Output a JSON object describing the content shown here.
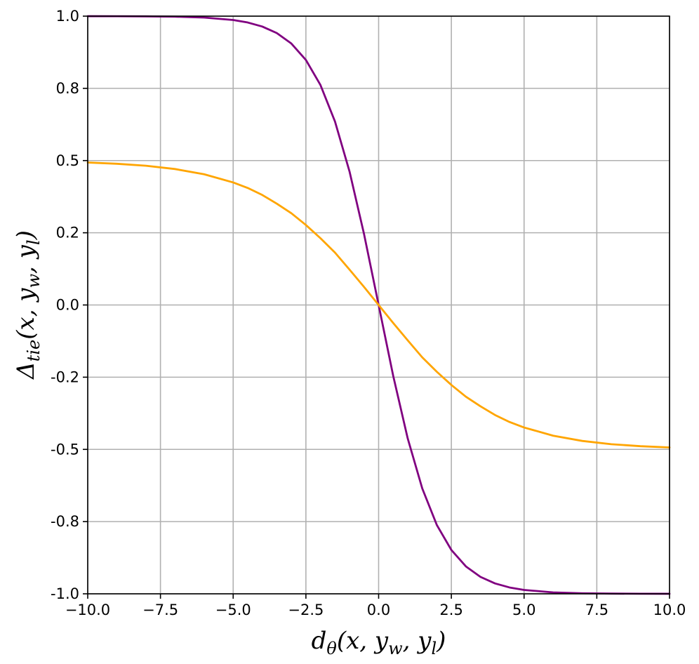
{
  "chart_data": {
    "type": "line",
    "title": "",
    "xlabel": {
      "base": "d",
      "base_sub": "θ",
      "args": [
        "(x, y",
        "w",
        ", y",
        "l",
        ")"
      ]
    },
    "ylabel": {
      "base": "Δ",
      "base_sub": "tie",
      "args": [
        "(x, y",
        "w",
        ", y",
        "l",
        ")"
      ]
    },
    "xlim": [
      -10,
      10
    ],
    "ylim": [
      -1,
      1
    ],
    "x_ticks": [
      -10,
      -7.5,
      -5,
      -2.5,
      0,
      2.5,
      5,
      7.5,
      10
    ],
    "x_tick_labels": [
      "−10.0",
      "−7.5",
      "−5.0",
      "−2.5",
      "0.0",
      "2.5",
      "5.0",
      "7.5",
      "10.0"
    ],
    "y_ticks": [
      1.0,
      0.75,
      0.5,
      0.25,
      0.0,
      -0.25,
      -0.5,
      -0.75,
      -1.0
    ],
    "y_tick_labels": [
      "1.0",
      "0.8",
      "0.5",
      "0.2",
      "0.0",
      "-0.2",
      "-0.5",
      "-0.8",
      "-1.0"
    ],
    "grid": true,
    "legend": "none",
    "series": [
      {
        "color": "#800080",
        "x": [
          -10,
          -9,
          -8,
          -7,
          -6,
          -5,
          -4.5,
          -4,
          -3.5,
          -3,
          -2.5,
          -2,
          -1.5,
          -1,
          -0.5,
          0,
          0.5,
          1,
          1.5,
          2,
          2.5,
          3,
          3.5,
          4,
          4.5,
          5,
          6,
          7,
          8,
          9,
          10
        ],
        "y": [
          0.9999,
          0.9997,
          0.9993,
          0.9982,
          0.9951,
          0.9866,
          0.978,
          0.964,
          0.9414,
          0.9051,
          0.8483,
          0.7616,
          0.6351,
          0.4621,
          0.2449,
          0.0,
          -0.2449,
          -0.4621,
          -0.6351,
          -0.7616,
          -0.8483,
          -0.9051,
          -0.9414,
          -0.964,
          -0.978,
          -0.9866,
          -0.9951,
          -0.9982,
          -0.9993,
          -0.9997,
          -0.9999
        ]
      },
      {
        "color": "#ffa500",
        "x": [
          -10,
          -9,
          -8,
          -7,
          -6,
          -5,
          -4.5,
          -4,
          -3.5,
          -3,
          -2.5,
          -2,
          -1.5,
          -1,
          -0.5,
          0,
          0.5,
          1,
          1.5,
          2,
          2.5,
          3,
          3.5,
          4,
          4.5,
          5,
          6,
          7,
          8,
          9,
          10
        ],
        "y": [
          0.4933,
          0.4889,
          0.482,
          0.4707,
          0.4526,
          0.4242,
          0.4051,
          0.3808,
          0.3507,
          0.3176,
          0.2769,
          0.2311,
          0.1813,
          0.1224,
          0.0623,
          0.0,
          -0.0623,
          -0.1224,
          -0.1813,
          -0.2311,
          -0.2769,
          -0.3176,
          -0.3507,
          -0.3808,
          -0.4051,
          -0.4242,
          -0.4526,
          -0.4707,
          -0.482,
          -0.4889,
          -0.4933
        ]
      }
    ]
  }
}
